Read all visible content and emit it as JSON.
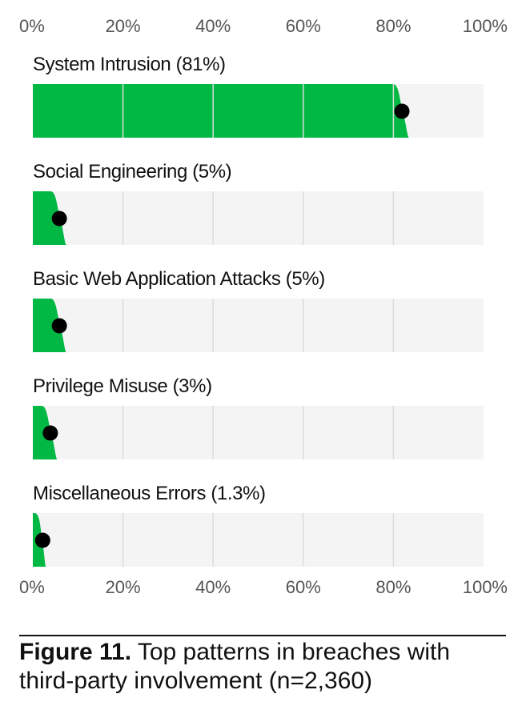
{
  "chart_data": {
    "type": "bar",
    "categories": [
      "System Intrusion (81%)",
      "Social Engineering (5%)",
      "Basic Web Application Attacks (5%)",
      "Privilege Misuse (3%)",
      "Miscellaneous Errors (1.3%)"
    ],
    "values": [
      81,
      5,
      5,
      3,
      1.3
    ],
    "xlim": [
      0,
      100
    ],
    "ticks": [
      "0%",
      "20%",
      "40%",
      "60%",
      "80%",
      "100%"
    ],
    "tick_values": [
      0,
      20,
      40,
      60,
      80,
      100
    ],
    "grid": true,
    "colors": {
      "bar": "#00b843",
      "track": "#f4f4f4",
      "grid": "#dcdcdc",
      "marker": "#000000"
    }
  },
  "caption": {
    "figure_label": "Figure 11.",
    "text": " Top patterns in breaches with third-party involvement (n=2,360)"
  }
}
